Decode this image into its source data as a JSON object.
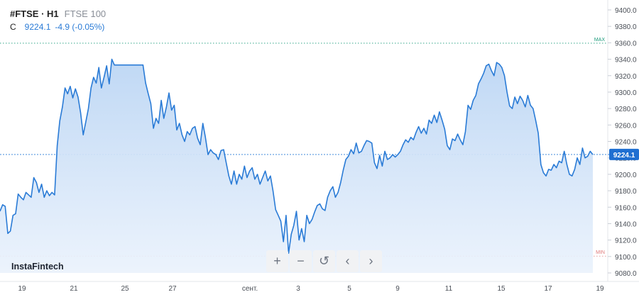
{
  "header": {
    "symbol": "#FTSE · H1",
    "subtitle": "FTSE 100",
    "close_prefix": "C",
    "close_value": "9224.1",
    "change": "-4.9 (-0.05%)"
  },
  "brand": "InstaFintech",
  "toolbar": [
    {
      "name": "zoom-in-button",
      "glyph": "+"
    },
    {
      "name": "zoom-out-button",
      "glyph": "−"
    },
    {
      "name": "reset-button",
      "glyph": "↺"
    },
    {
      "name": "scroll-left-button",
      "glyph": "‹"
    },
    {
      "name": "scroll-right-button",
      "glyph": "›"
    }
  ],
  "colors": {
    "line": "#2a7bd6",
    "area_top": "#bcd6f4",
    "area_bottom": "#eaf2fc",
    "max_line": "#1a9a7a",
    "min_line": "#e07a7a",
    "current_price_bg": "#1f6fd1"
  },
  "chart_data": {
    "type": "area",
    "title": "",
    "xlabel": "",
    "ylabel": "",
    "ylim": [
      9080.0,
      9400.0
    ],
    "yticks": [
      "9400.0",
      "9380.0",
      "9360.0",
      "9340.0",
      "9320.0",
      "9300.0",
      "9280.0",
      "9260.0",
      "9240.0",
      "9220.0",
      "9200.0",
      "9180.0",
      "9160.0",
      "9140.0",
      "9120.0",
      "9100.0",
      "9080.0"
    ],
    "x_tick_labels": [
      "19",
      "21",
      "25",
      "27",
      "сент.",
      "3",
      "5",
      "9",
      "11",
      "15",
      "17",
      "19"
    ],
    "max_label": "MAX",
    "max_value": 9359.5,
    "min_label": "MIN",
    "min_value": 9100.5,
    "current_value": 9224.1,
    "current_label": "9224.1",
    "series": [
      {
        "values": [
          9155,
          9163,
          9161,
          9128,
          9131,
          9150,
          9152,
          9176,
          9172,
          9169,
          9178,
          9175,
          9172,
          9196,
          9190,
          9178,
          9188,
          9172,
          9180,
          9174,
          9178,
          9175,
          9235,
          9265,
          9282,
          9305,
          9298,
          9307,
          9293,
          9304,
          9294,
          9275,
          9248,
          9264,
          9280,
          9305,
          9318,
          9311,
          9330,
          9305,
          9318,
          9332,
          9310,
          9340,
          9333,
          9333,
          9333,
          9333,
          9333,
          9333,
          9333,
          9333,
          9333,
          9333,
          9333,
          9333,
          9311,
          9298,
          9286,
          9256,
          9268,
          9262,
          9290,
          9268,
          9282,
          9299,
          9278,
          9284,
          9254,
          9262,
          9248,
          9240,
          9252,
          9248,
          9256,
          9258,
          9244,
          9236,
          9262,
          9245,
          9224,
          9230,
          9226,
          9224,
          9218,
          9229,
          9230,
          9214,
          9198,
          9188,
          9204,
          9188,
          9200,
          9194,
          9210,
          9196,
          9204,
          9208,
          9194,
          9200,
          9188,
          9196,
          9204,
          9192,
          9198,
          9180,
          9157,
          9150,
          9143,
          9118,
          9150,
          9104,
          9127,
          9138,
          9155,
          9120,
          9134,
          9118,
          9150,
          9140,
          9145,
          9154,
          9162,
          9164,
          9158,
          9156,
          9172,
          9180,
          9185,
          9172,
          9178,
          9190,
          9205,
          9218,
          9222,
          9230,
          9225,
          9238,
          9226,
          9228,
          9235,
          9241,
          9240,
          9238,
          9214,
          9207,
          9223,
          9210,
          9228,
          9218,
          9220,
          9224,
          9221,
          9224,
          9228,
          9236,
          9242,
          9239,
          9245,
          9242,
          9251,
          9258,
          9250,
          9256,
          9249,
          9266,
          9262,
          9272,
          9263,
          9276,
          9266,
          9255,
          9235,
          9230,
          9243,
          9241,
          9249,
          9242,
          9236,
          9252,
          9284,
          9279,
          9290,
          9296,
          9310,
          9316,
          9323,
          9332,
          9334,
          9326,
          9320,
          9336,
          9334,
          9330,
          9320,
          9300,
          9283,
          9280,
          9294,
          9286,
          9295,
          9290,
          9282,
          9296,
          9284,
          9280,
          9266,
          9250,
          9212,
          9202,
          9198,
          9206,
          9205,
          9212,
          9208,
          9216,
          9214,
          9228,
          9212,
          9200,
          9198,
          9206,
          9220,
          9212,
          9232,
          9220,
          9222,
          9228,
          9224
        ]
      }
    ]
  }
}
